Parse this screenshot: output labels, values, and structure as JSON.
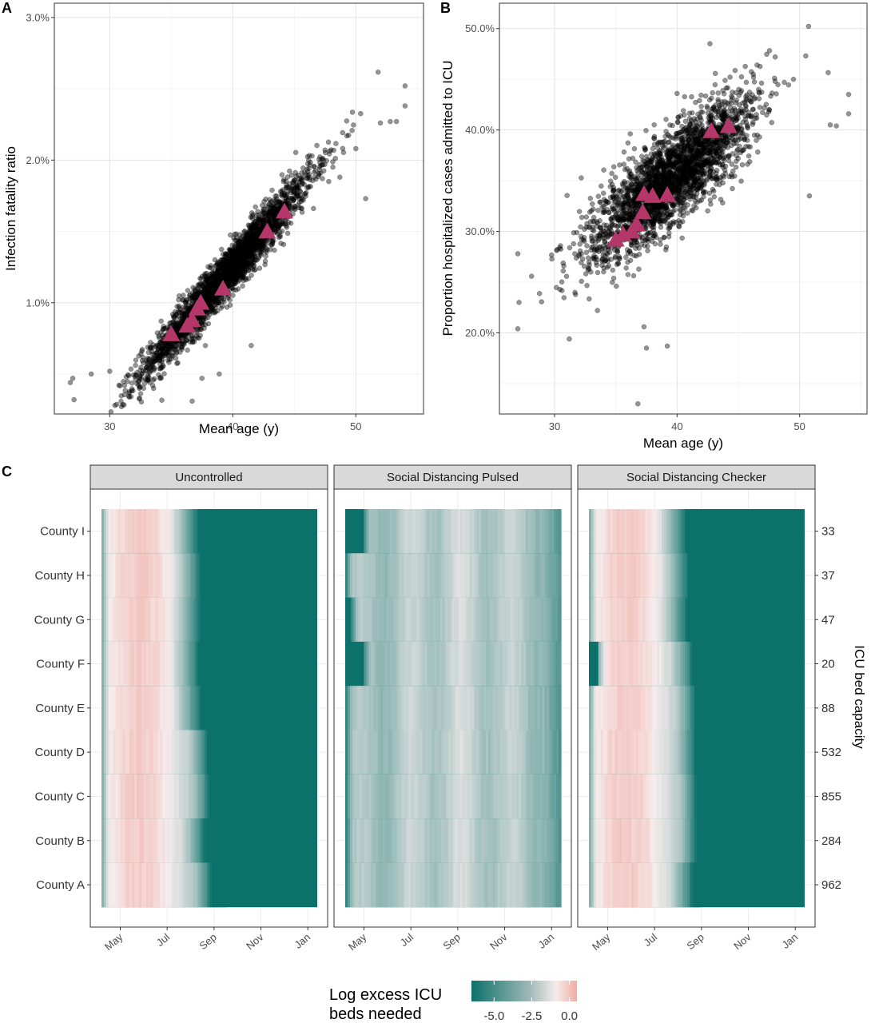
{
  "panels": {
    "A": {
      "letter": "A",
      "chart_data": {
        "type": "scatter",
        "xlabel": "Mean age (y)",
        "ylabel": "Infection fatality ratio",
        "xlim": [
          25.5,
          55.5
        ],
        "ylim": [
          0.22,
          3.1
        ],
        "xticks": [
          30,
          40,
          50
        ],
        "yticks": [
          1.0,
          2.0,
          3.0
        ],
        "ytick_labels": [
          "1.0%",
          "2.0%",
          "3.0%"
        ],
        "grid": true,
        "cloud": {
          "n": 2600,
          "x_mean": 39.5,
          "x_sd": 3.4,
          "intercept": 1.2,
          "slope": 0.1,
          "resid_sd": 0.085
        },
        "points": [
          [
            26.8,
            0.44
          ],
          [
            27.1,
            0.32
          ],
          [
            27.0,
            0.47
          ],
          [
            28.5,
            0.5
          ],
          [
            30.0,
            0.52
          ],
          [
            31.2,
            0.42
          ],
          [
            36.7,
            0.31
          ],
          [
            37.5,
            0.47
          ],
          [
            38.9,
            0.5
          ],
          [
            41.5,
            0.7
          ],
          [
            50.8,
            1.73
          ],
          [
            52.0,
            2.26
          ],
          [
            52.8,
            2.27
          ],
          [
            53.3,
            2.27
          ],
          [
            54.0,
            2.52
          ],
          [
            54.0,
            2.38
          ],
          [
            50.0,
            2.08
          ],
          [
            48.7,
            1.88
          ],
          [
            47.8,
            1.85
          ]
        ],
        "series": [
          {
            "name": "County",
            "marker": "triangle",
            "color": "#b5376a",
            "x": [
              35.0,
              36.3,
              36.7,
              37.1,
              37.4,
              39.2,
              42.8,
              44.2
            ],
            "y": [
              0.78,
              0.84,
              0.88,
              0.96,
              1.0,
              1.1,
              1.5,
              1.64
            ]
          }
        ]
      }
    },
    "B": {
      "letter": "B",
      "chart_data": {
        "type": "scatter",
        "xlabel": "Mean age (y)",
        "ylabel": "Proportion hospitalized cases admitted to ICU",
        "xlim": [
          25.5,
          55.5
        ],
        "ylim": [
          12.0,
          52.5
        ],
        "xticks": [
          30,
          40,
          50
        ],
        "yticks": [
          20,
          30,
          40,
          50
        ],
        "ytick_labels": [
          "20.0%",
          "30.0%",
          "40.0%",
          "50.0%"
        ],
        "grid": true,
        "cloud": {
          "n": 2600,
          "x_mean": 39.5,
          "x_sd": 3.4,
          "intercept": 35.3,
          "slope": 0.95,
          "resid_sd": 2.3
        },
        "points": [
          [
            27.0,
            20.4
          ],
          [
            27.1,
            23.0
          ],
          [
            27.0,
            27.8
          ],
          [
            31.2,
            19.4
          ],
          [
            33.5,
            22.2
          ],
          [
            36.8,
            13.0
          ],
          [
            37.3,
            20.6
          ],
          [
            37.5,
            18.5
          ],
          [
            39.2,
            18.7
          ],
          [
            50.5,
            47.3
          ],
          [
            50.8,
            33.5
          ],
          [
            52.5,
            40.5
          ],
          [
            53.0,
            40.4
          ],
          [
            54.0,
            43.5
          ],
          [
            54.0,
            41.6
          ],
          [
            49.5,
            45.0
          ],
          [
            48.0,
            44.8
          ]
        ],
        "series": [
          {
            "name": "County",
            "marker": "triangle",
            "color": "#b5376a",
            "x": [
              35.0,
              35.6,
              36.3,
              36.7,
              37.2,
              37.3,
              38.0,
              39.2,
              42.8,
              44.2
            ],
            "y": [
              29.2,
              29.7,
              30.0,
              30.7,
              31.9,
              33.7,
              33.5,
              33.6,
              39.9,
              40.4
            ]
          }
        ]
      }
    },
    "C": {
      "letter": "C",
      "chart_data": {
        "type": "heatmap",
        "facets": [
          "Uncontrolled",
          "Social Distancing Pulsed",
          "Social Distancing Checker"
        ],
        "rows": [
          "County I",
          "County H",
          "County G",
          "County F",
          "County E",
          "County D",
          "County C",
          "County B",
          "County A"
        ],
        "capacities": [
          "33",
          "37",
          "47",
          "20",
          "88",
          "532",
          "855",
          "284",
          "962"
        ],
        "right_axis_title": "ICU bed capacity",
        "x_ticks": [
          "May",
          "Jul",
          "Sep",
          "Nov",
          "Jan"
        ],
        "x_domain_months": [
          3.2,
          12.4
        ],
        "x_tick_months": [
          4,
          6,
          8,
          10,
          12
        ],
        "legend_title": [
          "Log excess ICU",
          "beds needed"
        ],
        "legend_ticks": [
          "-5.0",
          "-2.5",
          "0.0"
        ],
        "legend_range": [
          -6.5,
          0.5
        ],
        "colors": {
          "low": "#0c716b",
          "mid": "#f5ecec",
          "high": "#f1aba2"
        },
        "facet_end_months": {
          "Uncontrolled": [
            7.35,
            7.55,
            7.45,
            7.4,
            7.5,
            8.2,
            8.35,
            7.95,
            8.5
          ],
          "Social Distancing Pulsed": [
            12.4,
            12.4,
            12.4,
            12.4,
            12.4,
            12.4,
            12.4,
            12.4,
            12.4
          ],
          "Social Distancing Checker": [
            7.35,
            7.55,
            7.45,
            7.95,
            8.2,
            8.2,
            8.3,
            8.35,
            7.95
          ]
        },
        "facet_start_months": {
          "Uncontrolled": [
            3.2,
            3.2,
            3.2,
            3.2,
            3.2,
            3.2,
            3.2,
            3.2,
            3.2
          ],
          "Social Distancing Pulsed": [
            4.0,
            3.2,
            3.45,
            4.0,
            3.2,
            3.2,
            3.2,
            3.2,
            3.2
          ],
          "Social Distancing Checker": [
            3.2,
            3.2,
            3.2,
            3.6,
            3.2,
            3.2,
            3.2,
            3.2,
            3.2
          ]
        }
      }
    }
  }
}
